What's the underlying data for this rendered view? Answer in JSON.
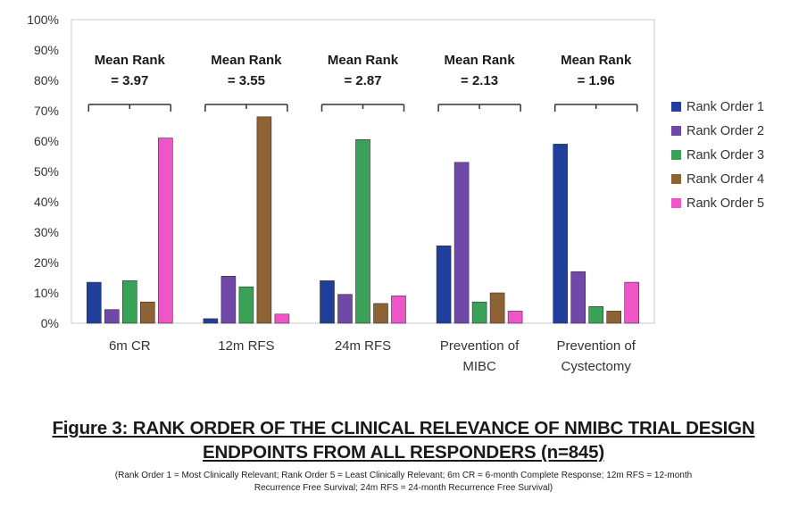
{
  "chart_data": {
    "type": "bar",
    "categories": [
      [
        "6m CR"
      ],
      [
        "12m RFS"
      ],
      [
        "24m RFS"
      ],
      [
        "Prevention of",
        "MIBC"
      ],
      [
        "Prevention of",
        "Cystectomy"
      ]
    ],
    "series": [
      {
        "name": "Rank Order 1",
        "color": "#1f3f9a",
        "values": [
          13.5,
          1.5,
          14,
          25.5,
          59
        ]
      },
      {
        "name": "Rank Order 2",
        "color": "#7049a8",
        "values": [
          4.5,
          15.5,
          9.5,
          53,
          17
        ]
      },
      {
        "name": "Rank Order 3",
        "color": "#3aa257",
        "values": [
          14,
          12,
          60.5,
          7,
          5.5
        ]
      },
      {
        "name": "Rank Order 4",
        "color": "#8f6235",
        "values": [
          7,
          68,
          6.5,
          10,
          4
        ]
      },
      {
        "name": "Rank Order 5",
        "color": "#ee55c7",
        "values": [
          61,
          3,
          9,
          4,
          13.5
        ]
      }
    ],
    "ylim": [
      0,
      100
    ],
    "ytick_labels": [
      "0%",
      "10%",
      "20%",
      "30%",
      "40%",
      "50%",
      "60%",
      "70%",
      "80%",
      "90%",
      "100%"
    ],
    "mean_ranks": [
      [
        "Mean Rank",
        "= 3.97"
      ],
      [
        "Mean Rank",
        "= 3.55"
      ],
      [
        "Mean Rank",
        "= 2.87"
      ],
      [
        "Mean Rank",
        "= 2.13"
      ],
      [
        "Mean Rank",
        "= 1.96"
      ]
    ],
    "legend_position": "right",
    "grid": false
  },
  "figure": {
    "title_line1": "Figure 3: RANK ORDER OF THE CLINICAL RELEVANCE OF NMIBC TRIAL DESIGN",
    "title_line2": "ENDPOINTS FROM ALL RESPONDERS (n=845)",
    "note_line1": "(Rank Order 1 = Most Clinically Relevant; Rank Order 5 = Least Clinically Relevant; 6m CR = 6-month Complete Response; 12m RFS = 12-month",
    "note_line2": "Recurrence Free Survival; 24m RFS = 24-month Recurrence Free Survival)"
  }
}
